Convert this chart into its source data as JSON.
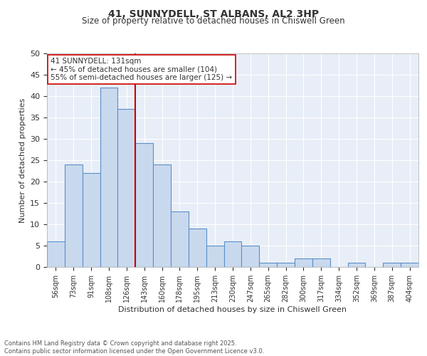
{
  "title1": "41, SUNNYDELL, ST ALBANS, AL2 3HP",
  "title2": "Size of property relative to detached houses in Chiswell Green",
  "xlabel": "Distribution of detached houses by size in Chiswell Green",
  "ylabel": "Number of detached properties",
  "bin_labels": [
    "56sqm",
    "73sqm",
    "91sqm",
    "108sqm",
    "126sqm",
    "143sqm",
    "160sqm",
    "178sqm",
    "195sqm",
    "213sqm",
    "230sqm",
    "247sqm",
    "265sqm",
    "282sqm",
    "300sqm",
    "317sqm",
    "334sqm",
    "352sqm",
    "369sqm",
    "387sqm",
    "404sqm"
  ],
  "bar_values": [
    6,
    24,
    22,
    42,
    37,
    29,
    24,
    13,
    9,
    5,
    6,
    5,
    1,
    1,
    2,
    2,
    0,
    1,
    0,
    1,
    1
  ],
  "bar_color": "#c9d9ed",
  "bar_edge_color": "#5b8fc9",
  "background_color": "#e8eef7",
  "grid_color": "#ffffff",
  "vline_color": "#cc0000",
  "annotation_text": "41 SUNNYDELL: 131sqm\n← 45% of detached houses are smaller (104)\n55% of semi-detached houses are larger (125) →",
  "annotation_box_color": "#ffffff",
  "annotation_box_edge": "#cc0000",
  "footer_text": "Contains HM Land Registry data © Crown copyright and database right 2025.\nContains public sector information licensed under the Open Government Licence v3.0.",
  "ylim": [
    0,
    50
  ],
  "yticks": [
    0,
    5,
    10,
    15,
    20,
    25,
    30,
    35,
    40,
    45,
    50
  ]
}
